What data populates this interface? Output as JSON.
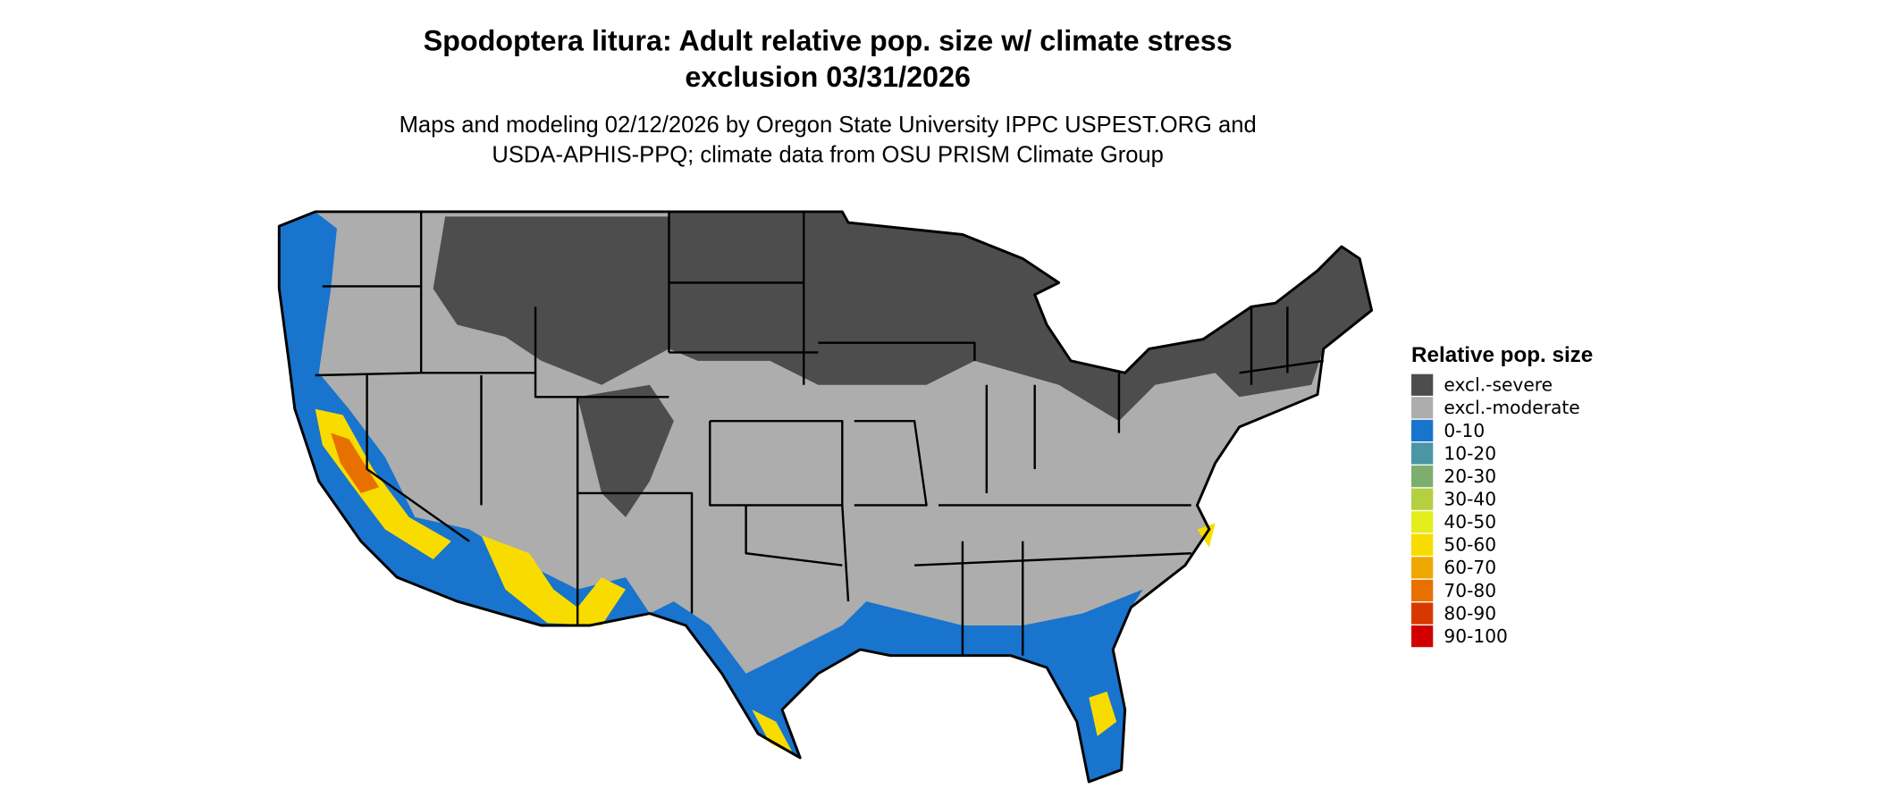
{
  "title": [
    "Spodoptera litura: Adult relative pop. size w/ climate stress",
    "exclusion 03/31/2026"
  ],
  "subtitle": [
    "Maps and modeling 02/12/2026 by Oregon State University IPPC USPEST.ORG and",
    "USDA-APHIS-PPQ; climate data from OSU PRISM Climate Group"
  ],
  "legend": {
    "title": "Relative pop. size",
    "items": [
      {
        "label": "excl.-severe",
        "color": "#4d4d4d"
      },
      {
        "label": "excl.-moderate",
        "color": "#adadad"
      },
      {
        "label": "0-10",
        "color": "#1874cd"
      },
      {
        "label": "10-20",
        "color": "#4a96a4"
      },
      {
        "label": "20-30",
        "color": "#7eae6e"
      },
      {
        "label": "30-40",
        "color": "#b4d040"
      },
      {
        "label": "40-50",
        "color": "#e4ee1c"
      },
      {
        "label": "50-60",
        "color": "#f8dc00"
      },
      {
        "label": "60-70",
        "color": "#f0a800"
      },
      {
        "label": "70-80",
        "color": "#e87000"
      },
      {
        "label": "80-90",
        "color": "#d83800"
      },
      {
        "label": "90-100",
        "color": "#d00000"
      }
    ]
  }
}
